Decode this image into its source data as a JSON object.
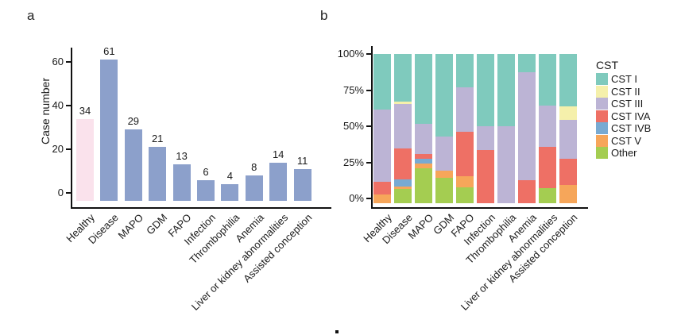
{
  "chart_data": [
    {
      "type": "bar",
      "panel_label": "a",
      "title": "",
      "xlabel": "",
      "ylabel": "Case number",
      "categories": [
        "Healthy",
        "Disease",
        "MAPO",
        "GDM",
        "FAPO",
        "Infection",
        "Thrombophilia",
        "Anemia",
        "Liver or kidney abnormalities",
        "Assisted conception"
      ],
      "values": [
        34,
        61,
        29,
        21,
        13,
        6,
        4,
        8,
        14,
        11
      ],
      "yticks": [
        0,
        20,
        40,
        60
      ],
      "ylim": [
        0,
        65
      ],
      "grid": false,
      "bar_color_default": "#8CA0CB",
      "bar_color_highlight": "#FAE2EC",
      "highlight_category": "Healthy"
    },
    {
      "type": "stacked-bar-percent",
      "panel_label": "b",
      "title": "",
      "xlabel": "",
      "ylabel": "",
      "categories": [
        "Healthy",
        "Disease",
        "MAPO",
        "GDM",
        "FAPO",
        "Infection",
        "Thrombophilia",
        "Anemia",
        "Liver or kidney abnormalities",
        "Assisted conception"
      ],
      "ytick_labels": [
        "0%",
        "25%",
        "50%",
        "75%",
        "100%"
      ],
      "ylim_percent": [
        0,
        100
      ],
      "grid": false,
      "legend_title": "CST",
      "legend_position": "right",
      "stack_order_bottom_to_top": [
        "Other",
        "CST V",
        "CST IVB",
        "CST IVA",
        "CST III",
        "CST II",
        "CST I"
      ],
      "series": [
        {
          "name": "CST I",
          "color": "#7FCABD",
          "values": [
            38.2,
            32.8,
            48.3,
            57.1,
            23.1,
            50.0,
            50.0,
            12.5,
            35.7,
            36.4
          ]
        },
        {
          "name": "CST II",
          "color": "#F5F0AB",
          "values": [
            0,
            1.6,
            0,
            0,
            0,
            0,
            0,
            0,
            0,
            9.1
          ]
        },
        {
          "name": "CST III",
          "color": "#BCB4D5",
          "values": [
            50.0,
            31.1,
            20.7,
            23.8,
            30.8,
            16.7,
            50.0,
            75.0,
            28.6,
            27.3
          ]
        },
        {
          "name": "CST IVA",
          "color": "#EE7065",
          "values": [
            8.8,
            21.3,
            3.4,
            0,
            30.8,
            33.3,
            0,
            12.5,
            28.6,
            18.2
          ]
        },
        {
          "name": "CST IVB",
          "color": "#78AAD2",
          "values": [
            0,
            4.9,
            3.4,
            0,
            0,
            0,
            0,
            0,
            0,
            0
          ]
        },
        {
          "name": "CST V",
          "color": "#F6A65A",
          "values": [
            2.9,
            1.6,
            3.4,
            4.8,
            7.7,
            0,
            0,
            0,
            0,
            9.1
          ]
        },
        {
          "name": "Other",
          "color": "#A4CD51",
          "values": [
            0,
            6.6,
            20.7,
            14.3,
            7.7,
            0,
            0,
            0,
            7.1,
            0
          ]
        }
      ]
    }
  ]
}
